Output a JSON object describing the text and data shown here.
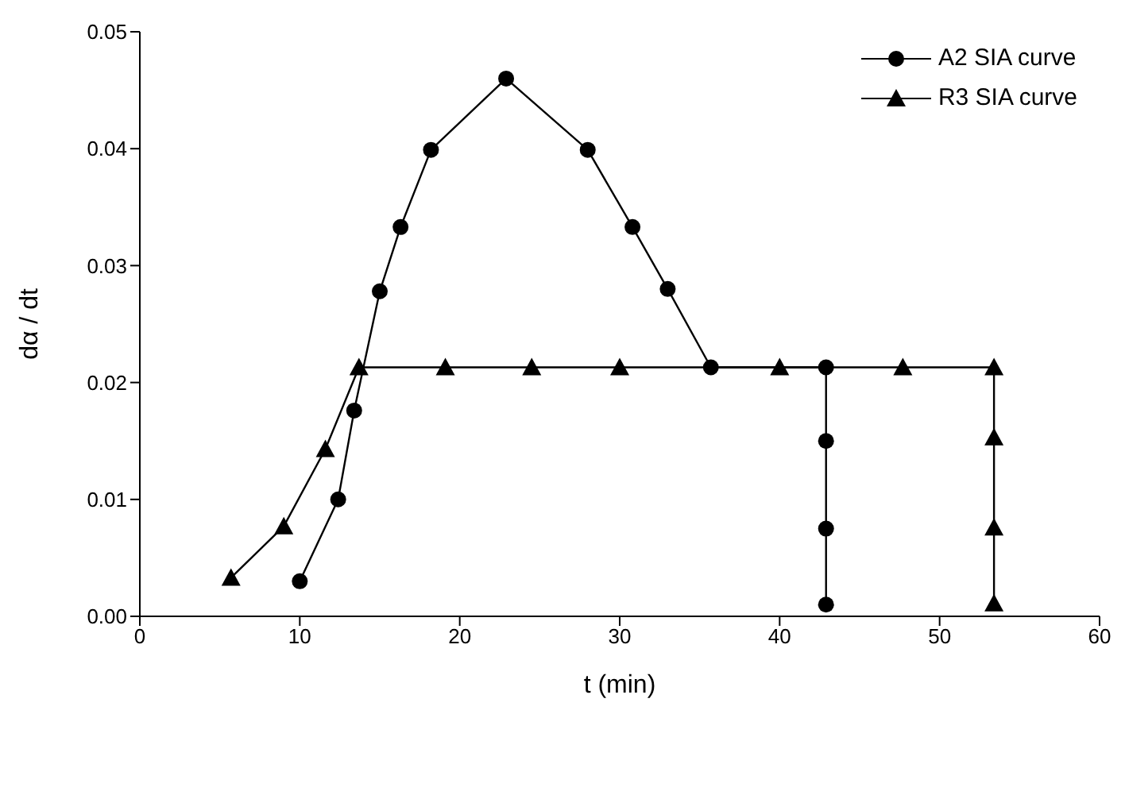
{
  "chart_data": {
    "type": "line",
    "xlabel": "t (min)",
    "ylabel": "dα / dt",
    "xlim": [
      0,
      60
    ],
    "xticks": [
      0,
      10,
      20,
      30,
      40,
      50,
      60
    ],
    "ylim": [
      0,
      0.05
    ],
    "yticks": [
      {
        "value": 0,
        "label": "0.00"
      },
      {
        "value": 0.01,
        "label": "0.01"
      },
      {
        "value": 0.02,
        "label": "0.02"
      },
      {
        "value": 0.03,
        "label": "0.03"
      },
      {
        "value": 0.04,
        "label": "0.04"
      },
      {
        "value": 0.05,
        "label": "0.05"
      }
    ],
    "grid": false,
    "legend": "top right",
    "line_style": "solid",
    "series": [
      {
        "name": "A2 SIA curve",
        "color": "#000000",
        "marker": "circle",
        "x": [
          10.0,
          12.4,
          13.4,
          15.0,
          16.3,
          18.2,
          22.9,
          28.0,
          30.8,
          33.0,
          35.7,
          42.9,
          42.9,
          42.9,
          42.9
        ],
        "values": [
          0.003,
          0.01,
          0.0176,
          0.0278,
          0.0333,
          0.0399,
          0.046,
          0.0399,
          0.0333,
          0.028,
          0.0213,
          0.0213,
          0.015,
          0.0075,
          0.001
        ]
      },
      {
        "name": "R3 SIA curve",
        "color": "#000000",
        "marker": "triangle",
        "x": [
          5.7,
          9.0,
          11.6,
          13.7,
          19.1,
          24.5,
          30.0,
          40.0,
          47.7,
          53.4,
          53.4,
          53.4,
          53.4
        ],
        "values": [
          0.0033,
          0.0077,
          0.0143,
          0.0213,
          0.0213,
          0.0213,
          0.0213,
          0.0213,
          0.0213,
          0.0213,
          0.0153,
          0.0076,
          0.0011
        ]
      }
    ]
  }
}
